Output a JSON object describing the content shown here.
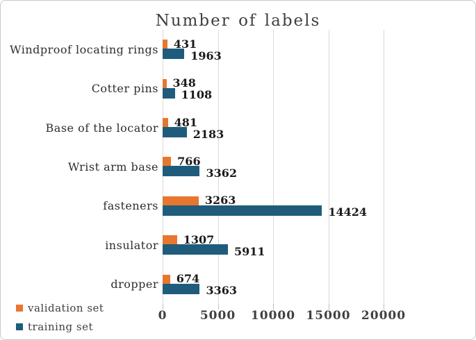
{
  "title": "Number of labels",
  "colors": {
    "validation": "#e8762e",
    "training": "#1f5c7c",
    "gridline": "#d9d9d9",
    "tick": "#bfbfbf",
    "title_text": "#404040",
    "value_text": "#1a1a1a"
  },
  "legend": {
    "items": [
      {
        "label": "validation set",
        "series_key": "validation"
      },
      {
        "label": "training set",
        "series_key": "training"
      }
    ]
  },
  "chart_data": {
    "type": "bar",
    "orientation": "horizontal",
    "title": "Number of labels",
    "categories": [
      "Windproof locating rings",
      "Cotter pins",
      "Base of the locator",
      "Wrist arm base",
      "fasteners",
      "insulator",
      "dropper"
    ],
    "series": [
      {
        "name": "validation set",
        "key": "validation",
        "color": "#e8762e",
        "values": [
          431,
          348,
          481,
          766,
          3263,
          1307,
          674
        ]
      },
      {
        "name": "training set",
        "key": "training",
        "color": "#1f5c7c",
        "values": [
          1963,
          1108,
          2183,
          3362,
          14424,
          5911,
          3363
        ]
      }
    ],
    "xlim": [
      0,
      20000
    ],
    "x_ticks": [
      0,
      5000,
      10000,
      15000,
      20000
    ],
    "grid": true,
    "data_labels": true,
    "legend_position": "bottom-left"
  }
}
